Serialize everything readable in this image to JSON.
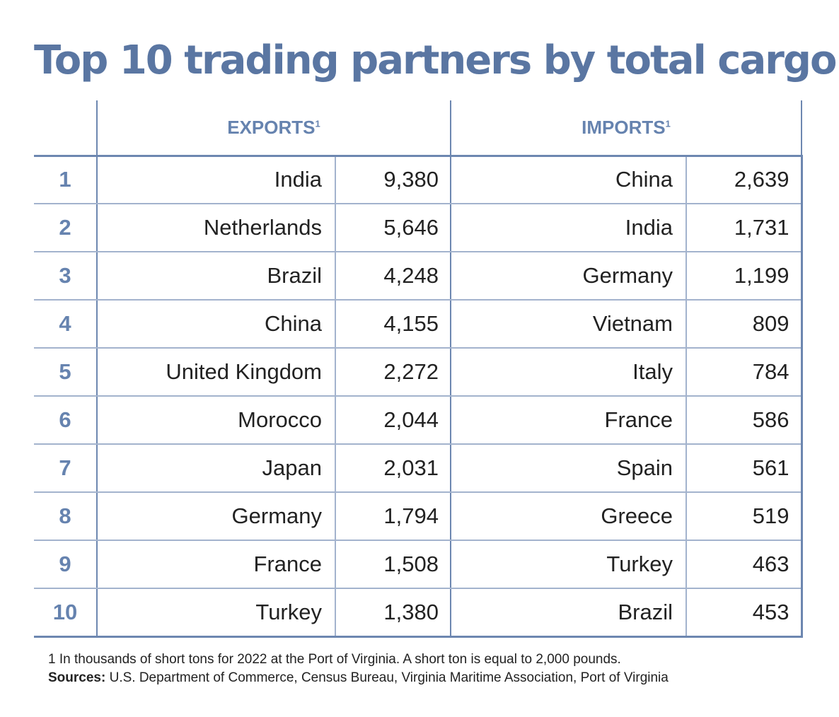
{
  "title": "Top 10 trading partners by total cargo",
  "chart_data": {
    "type": "table",
    "title": "Top 10 trading partners by total cargo",
    "groups": [
      {
        "label": "EXPORTS",
        "footnote_mark": "1"
      },
      {
        "label": "IMPORTS",
        "footnote_mark": "1"
      }
    ],
    "rows": [
      {
        "rank": "1",
        "export_country": "India",
        "export_value": "9,380",
        "import_country": "China",
        "import_value": "2,639"
      },
      {
        "rank": "2",
        "export_country": "Netherlands",
        "export_value": "5,646",
        "import_country": "India",
        "import_value": "1,731"
      },
      {
        "rank": "3",
        "export_country": "Brazil",
        "export_value": "4,248",
        "import_country": "Germany",
        "import_value": "1,199"
      },
      {
        "rank": "4",
        "export_country": "China",
        "export_value": "4,155",
        "import_country": "Vietnam",
        "import_value": "809"
      },
      {
        "rank": "5",
        "export_country": "United Kingdom",
        "export_value": "2,272",
        "import_country": "Italy",
        "import_value": "784"
      },
      {
        "rank": "6",
        "export_country": "Morocco",
        "export_value": "2,044",
        "import_country": "France",
        "import_value": "586"
      },
      {
        "rank": "7",
        "export_country": "Japan",
        "export_value": "2,031",
        "import_country": "Spain",
        "import_value": "561"
      },
      {
        "rank": "8",
        "export_country": "Germany",
        "export_value": "1,794",
        "import_country": "Greece",
        "import_value": "519"
      },
      {
        "rank": "9",
        "export_country": "France",
        "export_value": "1,508",
        "import_country": "Turkey",
        "import_value": "463"
      },
      {
        "rank": "10",
        "export_country": "Turkey",
        "export_value": "1,380",
        "import_country": "Brazil",
        "import_value": "453"
      }
    ]
  },
  "footnote": "1 In thousands of short tons for 2022 at the Port of Virginia. A short ton is equal to 2,000 pounds.",
  "sources_label": "Sources:",
  "sources_text": " U.S. Department of Commerce, Census Bureau, Virginia Maritime Association, Port of Virginia",
  "colors": {
    "accent": "#5a76a2",
    "header_text": "#6683af",
    "outer_rule": "#6d87b0",
    "inner_rule": "#a3b3cd",
    "body_text": "#222222"
  }
}
